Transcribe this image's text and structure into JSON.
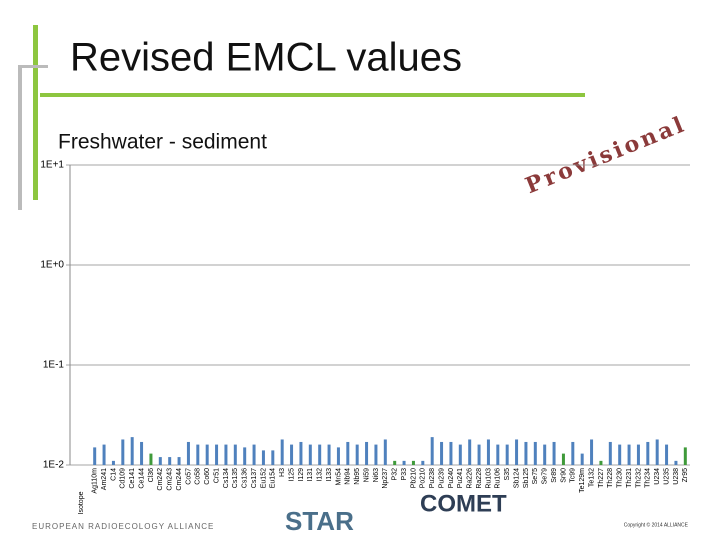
{
  "slide": {
    "title": "Revised EMCL values",
    "footer_logos": [
      "EUROPEAN RADIOECOLOGY ALLIANCE",
      "STAR",
      "COMET"
    ],
    "copyright": "Copyright © 2014 ALLIANCE"
  },
  "chart_data": {
    "type": "bar",
    "title": "Freshwater - sediment",
    "annotation": "Provisional",
    "x_label": "Isotope",
    "log_scale": true,
    "ylim": [
      0.01,
      10
    ],
    "yticks": [
      {
        "value": 0.01,
        "label": "1E-2"
      },
      {
        "value": 0.1,
        "label": "1E-1"
      },
      {
        "value": 1,
        "label": "1E+0"
      },
      {
        "value": 10,
        "label": "1E+1"
      }
    ],
    "categories": [
      "Ag110m",
      "Am241",
      "C14",
      "Cd109",
      "Ce141",
      "Ce144",
      "Cl36",
      "Cm242",
      "Cm243",
      "Cm244",
      "Co57",
      "Co58",
      "Co60",
      "Cr51",
      "Cs134",
      "Cs135",
      "Cs136",
      "Cs137",
      "Eu152",
      "Eu154",
      "H3",
      "I125",
      "I129",
      "I131",
      "I132",
      "I133",
      "Mn54",
      "Nb94",
      "Nb95",
      "Ni59",
      "Ni63",
      "Np237",
      "P32",
      "P33",
      "Pb210",
      "Po210",
      "Pu238",
      "Pu239",
      "Pu240",
      "Pu241",
      "Ra226",
      "Ra228",
      "Ru103",
      "Ru106",
      "S35",
      "Sb124",
      "Sb125",
      "Se75",
      "Se79",
      "Sr89",
      "Sr90",
      "Tc99",
      "Te129m",
      "Te132",
      "Th227",
      "Th228",
      "Th230",
      "Th231",
      "Th232",
      "Th234",
      "U234",
      "U235",
      "U238",
      "Zr95"
    ],
    "values": [
      0.015,
      0.016,
      0.011,
      0.018,
      0.019,
      0.017,
      0.013,
      0.012,
      0.012,
      0.012,
      0.017,
      0.016,
      0.016,
      0.016,
      0.016,
      0.016,
      0.015,
      0.016,
      0.014,
      0.014,
      0.018,
      0.016,
      0.017,
      0.016,
      0.016,
      0.016,
      0.015,
      0.017,
      0.016,
      0.017,
      0.016,
      0.018,
      0.011,
      0.011,
      0.011,
      0.011,
      0.019,
      0.017,
      0.017,
      0.016,
      0.018,
      0.016,
      0.018,
      0.016,
      0.016,
      0.018,
      0.017,
      0.017,
      0.016,
      0.017,
      0.013,
      0.017,
      0.013,
      0.018,
      0.011,
      0.017,
      0.016,
      0.016,
      0.016,
      0.017,
      0.018,
      0.016,
      0.011,
      0.015
    ],
    "color": "#4f81bd",
    "highlight_color": "#3f9a3a",
    "highlight": [
      6,
      32,
      34,
      50,
      54,
      63
    ]
  }
}
